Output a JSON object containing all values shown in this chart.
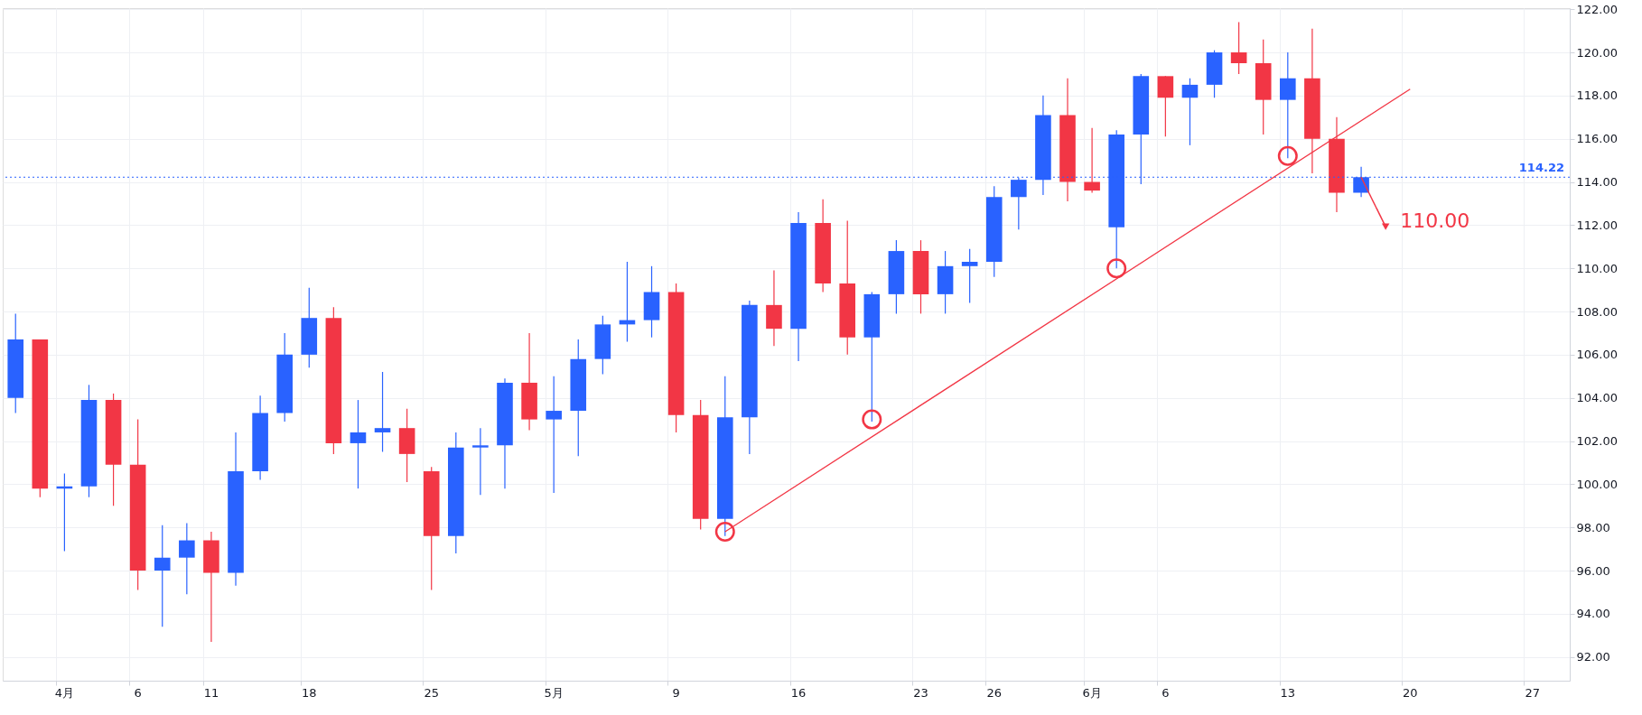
{
  "chart_data": {
    "type": "candlestick",
    "categories": [
      null,
      null,
      "4月",
      null,
      null,
      "6",
      null,
      null,
      "11",
      null,
      null,
      null,
      "18",
      null,
      null,
      null,
      null,
      "25",
      null,
      null,
      null,
      null,
      "5月",
      null,
      null,
      null,
      null,
      "9",
      null,
      null,
      null,
      null,
      "16",
      null,
      null,
      null,
      null,
      "23",
      null,
      null,
      "26",
      null,
      null,
      null,
      "6月",
      null,
      null,
      "6",
      null,
      null,
      null,
      null,
      "13",
      null,
      null,
      null,
      null,
      "20",
      null,
      null,
      null,
      null,
      "27",
      null
    ],
    "ohlc": [
      [
        104.0,
        107.9,
        103.3,
        106.7
      ],
      [
        106.7,
        106.7,
        99.4,
        99.8
      ],
      [
        99.8,
        100.5,
        96.9,
        99.9
      ],
      [
        99.9,
        104.6,
        99.4,
        103.9
      ],
      [
        103.9,
        104.2,
        99.0,
        100.9
      ],
      [
        100.9,
        103.0,
        95.1,
        96.0
      ],
      [
        96.0,
        98.1,
        93.4,
        96.6
      ],
      [
        96.6,
        98.2,
        94.9,
        97.4
      ],
      [
        97.4,
        97.8,
        92.7,
        95.9
      ],
      [
        95.9,
        102.4,
        95.3,
        100.6
      ],
      [
        100.6,
        104.1,
        100.2,
        103.3
      ],
      [
        103.3,
        107.0,
        102.9,
        106.0
      ],
      [
        106.0,
        109.1,
        105.4,
        107.7
      ],
      [
        107.7,
        108.2,
        101.4,
        101.9
      ],
      [
        101.9,
        103.9,
        99.8,
        102.4
      ],
      [
        102.4,
        105.2,
        101.5,
        102.6
      ],
      [
        102.6,
        103.5,
        100.1,
        101.4
      ],
      [
        100.6,
        100.8,
        95.1,
        97.6
      ],
      [
        97.6,
        102.4,
        96.8,
        101.7
      ],
      [
        101.7,
        102.6,
        99.5,
        101.8
      ],
      [
        101.8,
        104.9,
        99.8,
        104.7
      ],
      [
        104.7,
        107.0,
        102.5,
        103.0
      ],
      [
        103.0,
        105.0,
        99.6,
        103.4
      ],
      [
        103.4,
        106.7,
        101.3,
        105.8
      ],
      [
        105.8,
        107.8,
        105.1,
        107.4
      ],
      [
        107.4,
        110.3,
        106.6,
        107.6
      ],
      [
        107.6,
        110.1,
        106.8,
        108.9
      ],
      [
        108.9,
        109.3,
        102.4,
        103.2
      ],
      [
        103.2,
        103.9,
        97.9,
        98.4
      ],
      [
        98.4,
        105.0,
        97.6,
        103.1
      ],
      [
        103.1,
        108.5,
        101.4,
        108.3
      ],
      [
        108.3,
        109.9,
        106.4,
        107.2
      ],
      [
        107.2,
        112.6,
        105.7,
        112.1
      ],
      [
        112.1,
        113.2,
        108.9,
        109.3
      ],
      [
        109.3,
        112.2,
        106.0,
        106.8
      ],
      [
        106.8,
        108.9,
        102.9,
        108.8
      ],
      [
        108.8,
        111.3,
        107.9,
        110.8
      ],
      [
        110.8,
        111.3,
        107.9,
        108.8
      ],
      [
        108.8,
        110.8,
        107.9,
        110.1
      ],
      [
        110.1,
        110.9,
        108.4,
        110.3
      ],
      [
        110.3,
        113.8,
        109.6,
        113.3
      ],
      [
        113.3,
        114.2,
        111.8,
        114.1
      ],
      [
        114.1,
        118.0,
        113.4,
        117.1
      ],
      [
        117.1,
        118.8,
        113.1,
        114.0
      ],
      [
        114.0,
        116.5,
        113.5,
        113.6
      ],
      [
        111.9,
        116.4,
        110.0,
        116.2
      ],
      [
        116.2,
        119.0,
        113.9,
        118.9
      ],
      [
        118.9,
        118.9,
        116.1,
        117.9
      ],
      [
        117.9,
        118.8,
        115.7,
        118.5
      ],
      [
        118.5,
        120.1,
        117.9,
        120.0
      ],
      [
        120.0,
        121.4,
        119.0,
        119.5
      ],
      [
        119.5,
        120.6,
        116.2,
        117.8
      ],
      [
        117.8,
        120.0,
        115.1,
        118.8
      ],
      [
        118.8,
        121.1,
        114.4,
        116.0
      ],
      [
        116.0,
        117.0,
        112.6,
        113.5
      ],
      [
        113.5,
        114.7,
        113.3,
        114.22
      ],
      null,
      null,
      null,
      null,
      null,
      null,
      null,
      null
    ],
    "colors": [
      "#2962ff",
      "#f23645",
      "#2962ff",
      "#2962ff",
      "#f23645",
      "#f23645",
      "#2962ff",
      "#2962ff",
      "#f23645",
      "#2962ff",
      "#2962ff",
      "#2962ff",
      "#2962ff",
      "#f23645",
      "#2962ff",
      "#2962ff",
      "#f23645",
      "#f23645",
      "#2962ff",
      "#2962ff",
      "#2962ff",
      "#f23645",
      "#2962ff",
      "#2962ff",
      "#2962ff",
      "#2962ff",
      "#2962ff",
      "#f23645",
      "#f23645",
      "#2962ff",
      "#2962ff",
      "#f23645",
      "#2962ff",
      "#f23645",
      "#f23645",
      "#2962ff",
      "#2962ff",
      "#f23645",
      "#2962ff",
      "#2962ff",
      "#2962ff",
      "#2962ff",
      "#2962ff",
      "#f23645",
      "#f23645",
      "#2962ff",
      "#2962ff",
      "#f23645",
      "#2962ff",
      "#2962ff",
      "#f23645",
      "#f23645",
      "#2962ff",
      "#f23645",
      "#f23645",
      "#2962ff",
      null,
      null,
      null,
      null,
      null,
      null,
      null,
      null
    ],
    "series": [
      {
        "type": "line",
        "color": "#f23645",
        "values": [
          null,
          null,
          null,
          null,
          null,
          null,
          null,
          null,
          null,
          null,
          null,
          null,
          null,
          null,
          null,
          null,
          null,
          null,
          null,
          null,
          null,
          null,
          null,
          null,
          null,
          null,
          null,
          null,
          null,
          97.8,
          null,
          null,
          null,
          null,
          null,
          null,
          null,
          null,
          null,
          null,
          null,
          null,
          null,
          null,
          null,
          null,
          null,
          null,
          null,
          null,
          null,
          null,
          null,
          null,
          null,
          null,
          null,
          118.3,
          null,
          null,
          null,
          null,
          null,
          null
        ]
      },
      {
        "type": "scatter",
        "marker": "circle",
        "color": "#f23645",
        "values": [
          null,
          null,
          null,
          null,
          null,
          null,
          null,
          null,
          null,
          null,
          null,
          null,
          null,
          null,
          null,
          null,
          null,
          null,
          null,
          null,
          null,
          null,
          null,
          null,
          null,
          null,
          null,
          null,
          null,
          97.8,
          null,
          null,
          null,
          null,
          null,
          103.0,
          null,
          null,
          null,
          null,
          null,
          null,
          null,
          null,
          null,
          110.0,
          null,
          null,
          null,
          null,
          null,
          null,
          115.2,
          null,
          null,
          null,
          null,
          null,
          null,
          null,
          null,
          null,
          null,
          null
        ]
      }
    ],
    "ylim": [
      90.9,
      122.05
    ],
    "yticks": [
      {
        "value": 92,
        "label": "92.00"
      },
      {
        "value": 94,
        "label": "94.00"
      },
      {
        "value": 96,
        "label": "96.00"
      },
      {
        "value": 98,
        "label": "98.00"
      },
      {
        "value": 100,
        "label": "100.00"
      },
      {
        "value": 102,
        "label": "102.00"
      },
      {
        "value": 104,
        "label": "104.00"
      },
      {
        "value": 106,
        "label": "106.00"
      },
      {
        "value": 108,
        "label": "108.00"
      },
      {
        "value": 110,
        "label": "110.00"
      },
      {
        "value": 112,
        "label": "112.00"
      },
      {
        "value": 114,
        "label": "114.00"
      },
      {
        "value": 116,
        "label": "116.00"
      },
      {
        "value": 118,
        "label": "118.00"
      },
      {
        "value": 120,
        "label": "120.00"
      },
      {
        "value": 122,
        "label": "122.00"
      }
    ],
    "grid": true,
    "ref_lines": [
      {
        "axis": "y",
        "value": 114.22,
        "label": "114.22",
        "color": "#2962ff",
        "line_style": "dotted"
      }
    ],
    "annotations": [
      "110.00"
    ]
  }
}
